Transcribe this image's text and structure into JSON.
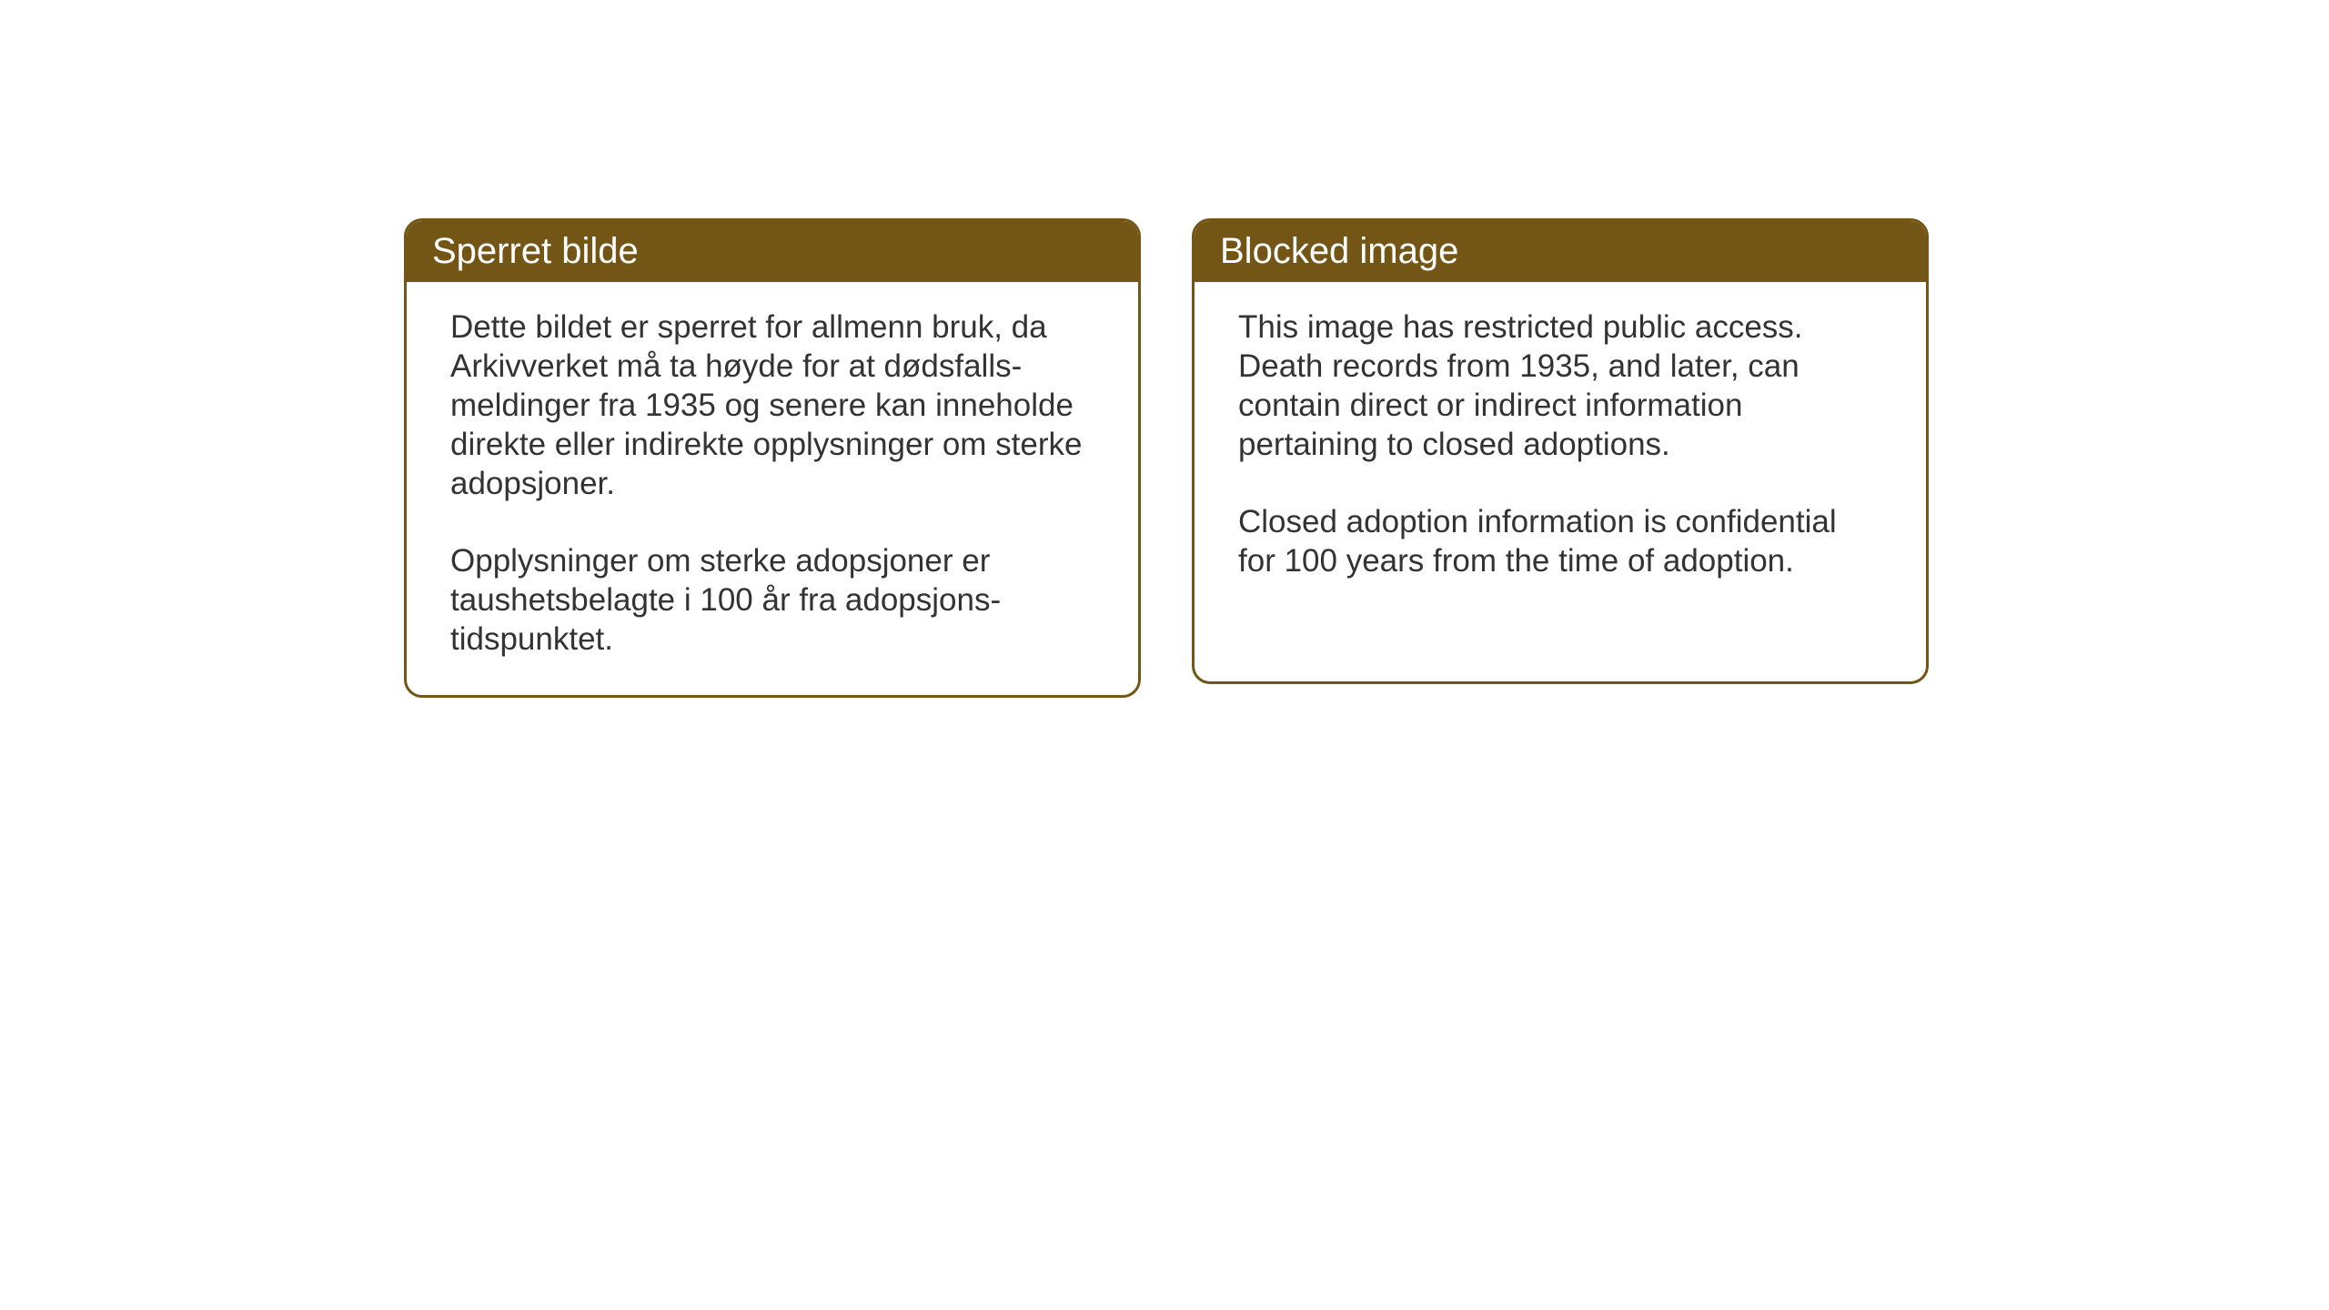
{
  "cards": [
    {
      "title": "Sperret bilde",
      "paragraph1": "Dette bildet er sperret for allmenn bruk, da Arkivverket må ta høyde for at dødsfalls-meldinger fra 1935 og senere kan inneholde direkte eller indirekte opplysninger om sterke adopsjoner.",
      "paragraph2": "Opplysninger om sterke adopsjoner er taushetsbelagte i 100 år fra adopsjons-tidspunktet."
    },
    {
      "title": "Blocked image",
      "paragraph1": "This image has restricted public access. Death records from 1935, and later, can contain direct or indirect information pertaining to closed adoptions.",
      "paragraph2": "Closed adoption information is confidential for 100 years from the time of adoption."
    }
  ],
  "styling": {
    "header_bg_color": "#735615",
    "header_text_color": "#ffffff",
    "border_color": "#735615",
    "body_text_color": "#333333",
    "bg_color": "#ffffff",
    "title_fontsize": 40,
    "body_fontsize": 35,
    "border_radius": 20,
    "border_width": 3
  }
}
